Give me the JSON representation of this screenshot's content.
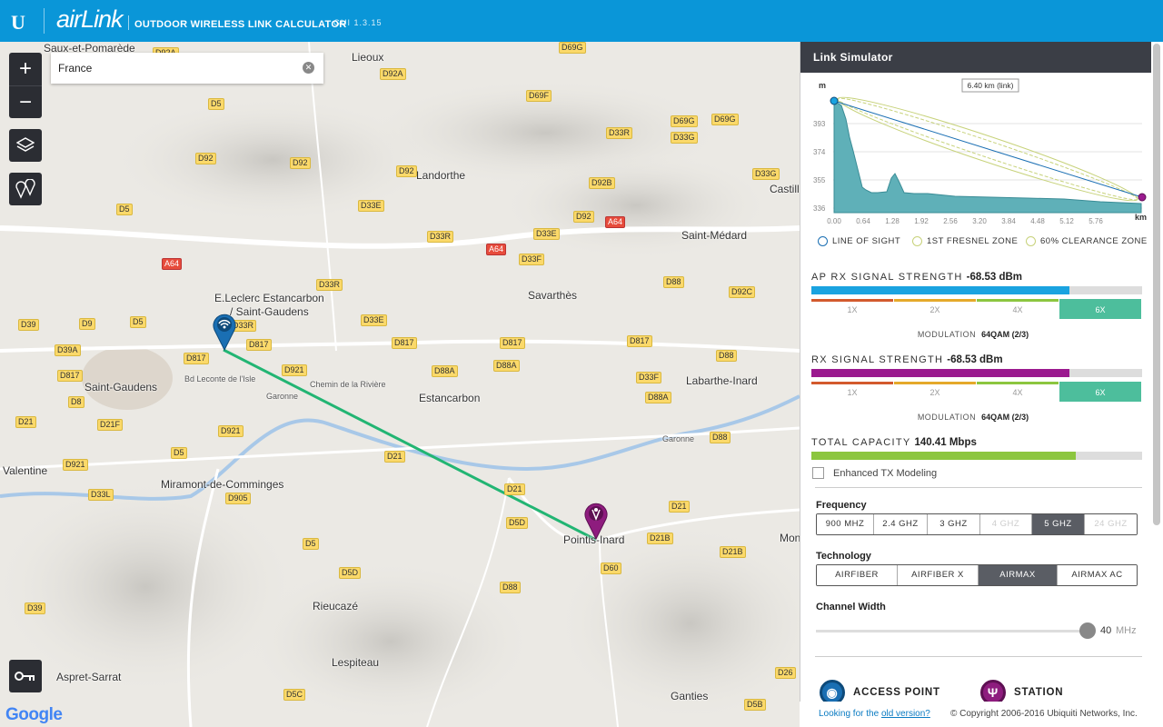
{
  "header": {
    "logo_letter": "U",
    "brand": "airLink",
    "subtitle": "OUTDOOR WIRELESS LINK CALCULATOR",
    "version": "GUI 1.3.15"
  },
  "map": {
    "search": {
      "value": "France",
      "placeholder": ""
    },
    "attribution": "Google",
    "towns": [
      "Saux-et-Pomarède",
      "Lieoux",
      "Landorthe",
      "Saint-Médard",
      "Castill",
      "Savarthès",
      "E.Leclerc Estancarbon",
      "/ Saint-Gaudens",
      "Saint-Gaudens",
      "Estancarbon",
      "Labarthe-Inard",
      "Valentine",
      "Miramont-de-Comminges",
      "Pointis-Inard",
      "Rieucazé",
      "Lespiteau",
      "Aspret-Sarrat",
      "Ganties",
      "Mon",
      "Bd Leconte de l'Isle",
      "Chemin de la Rivière",
      "Garonne",
      "Garonne"
    ],
    "roads": [
      "D92A",
      "D69G",
      "D92A",
      "D5",
      "D69F",
      "D69G",
      "D69G",
      "D33R",
      "D33G",
      "D92",
      "D92",
      "D92",
      "D92B",
      "D33G",
      "D92",
      "D5",
      "D33E",
      "D33R",
      "A64",
      "D33E",
      "A64",
      "D33F",
      "A64",
      "D33R",
      "D92C",
      "D39",
      "D9",
      "D5",
      "D33R",
      "D33E",
      "D88",
      "D39A",
      "D817",
      "D817",
      "D817",
      "D817",
      "D817",
      "D88",
      "D817",
      "D921",
      "D88A",
      "D88A",
      "D33F",
      "D8",
      "D88A",
      "D21",
      "D21F",
      "D921",
      "D88",
      "D5",
      "D21",
      "D921",
      "D33L",
      "D905",
      "D21",
      "D5D",
      "D21",
      "D21B",
      "D21B",
      "D5",
      "D5D",
      "D60",
      "D88",
      "D39",
      "D26",
      "D5C",
      "D5B"
    ]
  },
  "panel": {
    "title": "Link Simulator",
    "profile": {
      "y_unit": "m",
      "x_unit": "km",
      "link_label": "6.40 km (link)",
      "y_ticks": [
        "393",
        "374",
        "355",
        "336"
      ],
      "x_ticks": [
        "0.00",
        "0.64",
        "1.28",
        "1.92",
        "2.56",
        "3.20",
        "3.84",
        "4.48",
        "5.12",
        "5.76"
      ]
    },
    "legend": {
      "los": "LINE OF SIGHT",
      "fresnel": "1ST FRESNEL ZONE",
      "clearance": "60% CLEARANCE ZONE"
    },
    "ap_rx": {
      "label": "AP RX SIGNAL STRENGTH",
      "value": "-68.53 dBm",
      "fill": 0.78,
      "color": "#1aa3e0"
    },
    "rx": {
      "label": "RX SIGNAL STRENGTH",
      "value": "-68.53 dBm",
      "fill": 0.78,
      "color": "#9b1a8f"
    },
    "mod_levels": [
      "1X",
      "2X",
      "4X",
      "6X"
    ],
    "mod_colors": [
      "#d35a2d",
      "#e5a92a",
      "#8cc63f",
      "#4dbe9c"
    ],
    "modulation_label": "MODULATION",
    "ap_modulation": "64QAM (2/3)",
    "rx_modulation": "64QAM (2/3)",
    "capacity": {
      "label": "TOTAL CAPACITY",
      "value": "140.41 Mbps",
      "fill": 0.8,
      "color": "#8cc63f"
    },
    "enhanced_tx": "Enhanced TX Modeling",
    "frequency": {
      "label": "Frequency",
      "options": [
        "900 MHZ",
        "2.4 GHZ",
        "3 GHZ",
        "4 GHZ",
        "5 GHZ",
        "24 GHZ"
      ],
      "selected": "5 GHZ"
    },
    "technology": {
      "label": "Technology",
      "options": [
        "AIRFIBER",
        "AIRFIBER X",
        "AIRMAX",
        "AIRMAX AC"
      ],
      "selected": "AIRMAX"
    },
    "channel_width": {
      "label": "Channel Width",
      "value": "40",
      "unit": "MHz"
    },
    "access_point": "ACCESS POINT",
    "station": "STATION",
    "accent_ap": "#1a6fb3",
    "accent_station": "#8e1c7e"
  },
  "footer": {
    "prefix": "Looking for the ",
    "link": "old version?",
    "copyright": "© Copyright 2006-2016 Ubiquiti Networks, Inc."
  }
}
